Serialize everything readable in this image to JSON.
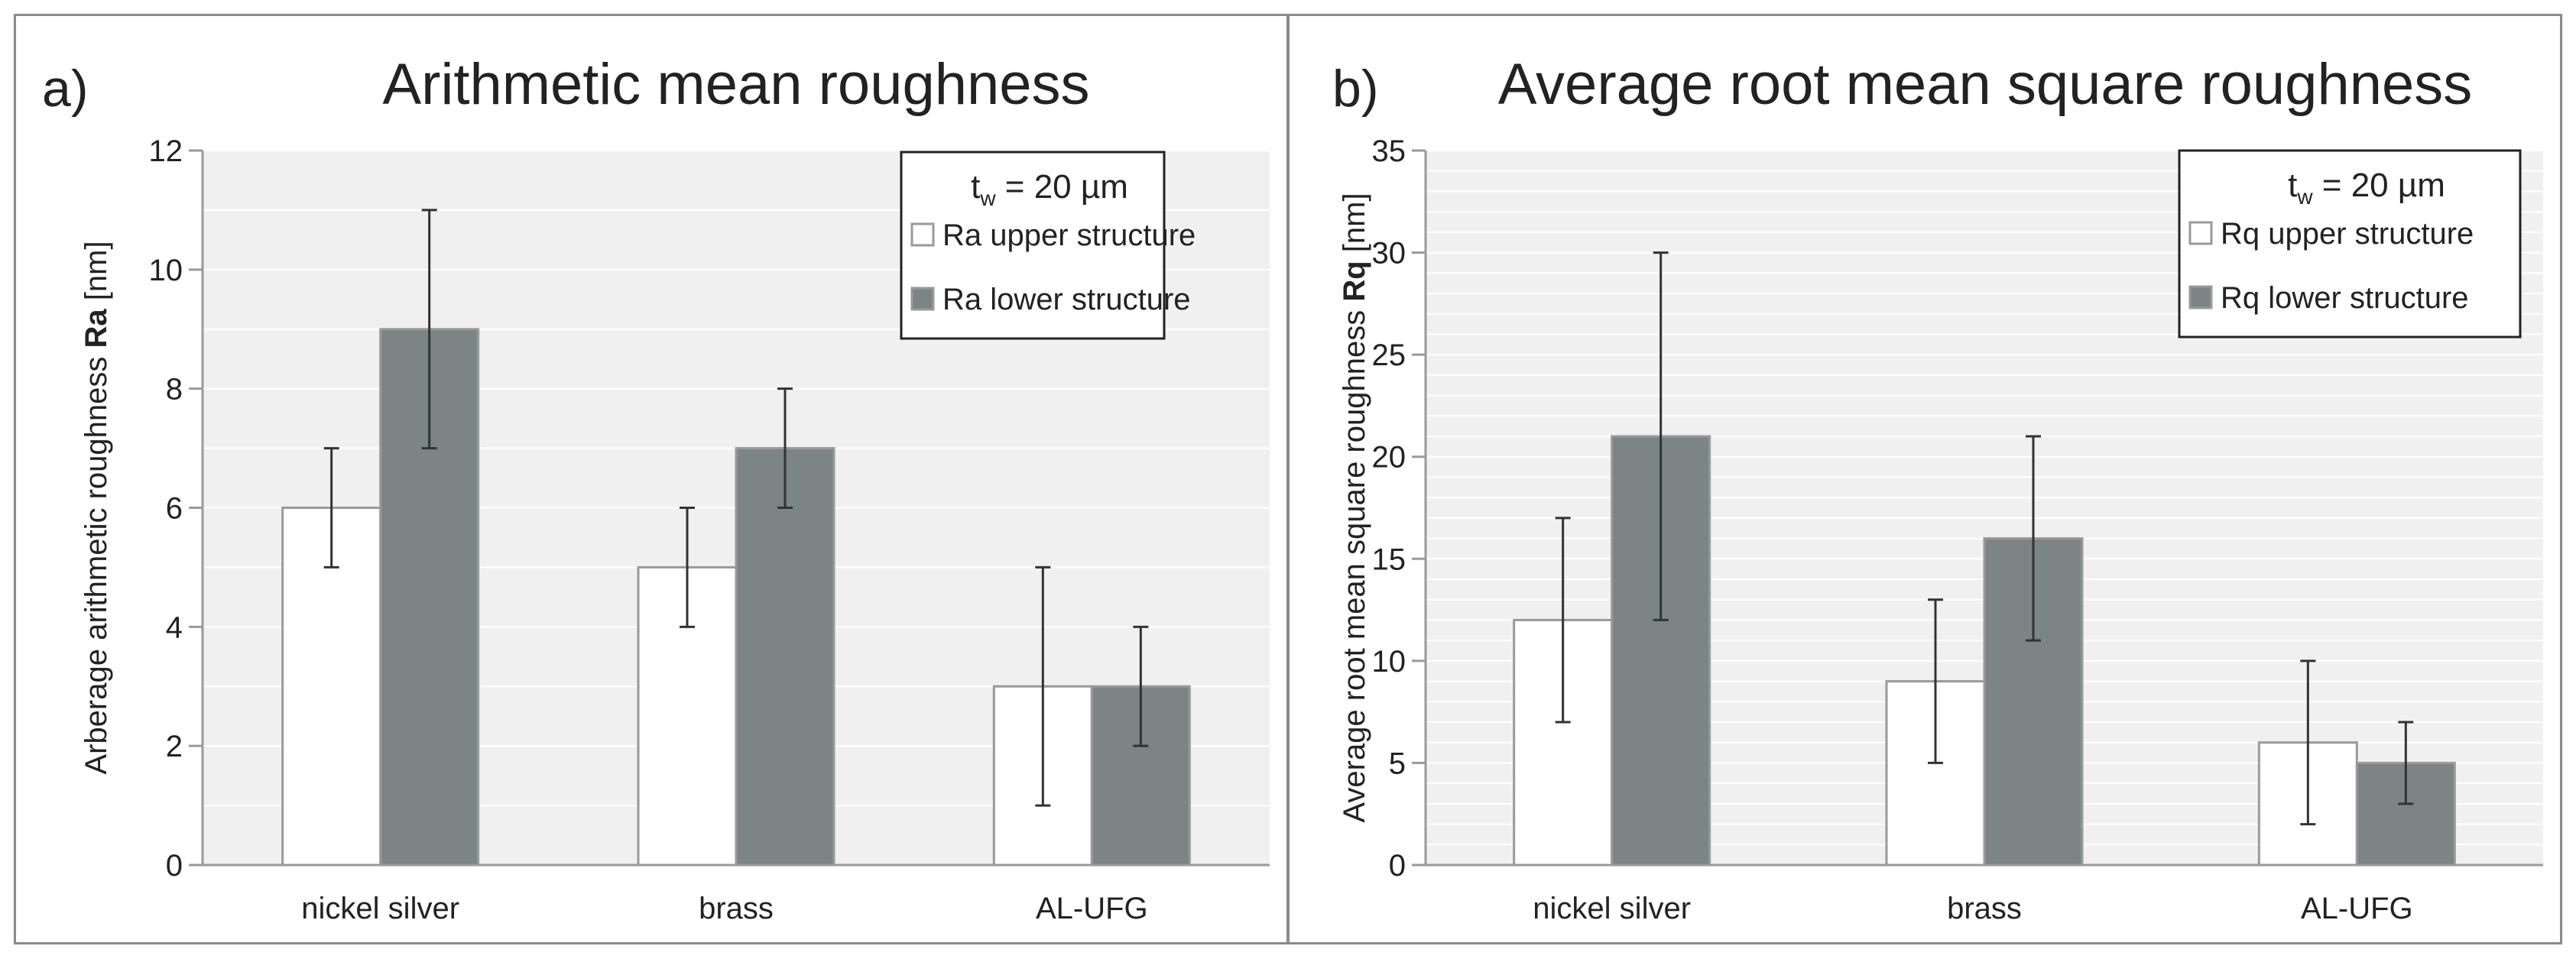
{
  "chart_data": [
    {
      "type": "bar",
      "panel_letter": "a)",
      "title": "Arithmetic mean roughness",
      "ylabel_prefix": "Arberage arithmetic roughness ",
      "ylabel_bold": "Ra",
      "ylabel_suffix": " [nm]",
      "ylim": [
        0,
        12
      ],
      "yticks": [
        0,
        2,
        4,
        6,
        8,
        10,
        12
      ],
      "grid_step": 1,
      "categories": [
        "nickel silver",
        "brass",
        "AL-UFG"
      ],
      "legend_title_main": "t",
      "legend_title_sub": "w",
      "legend_title_rest": " = 20 µm",
      "legend_position": "top-right",
      "series": [
        {
          "name": "Ra upper structure",
          "values": [
            6,
            5,
            3
          ],
          "errors": [
            1,
            1,
            2
          ],
          "color": "#ffffff"
        },
        {
          "name": "Ra lower structure",
          "values": [
            9,
            7,
            3
          ],
          "errors": [
            2,
            1,
            1
          ],
          "color": "#7a8584"
        }
      ]
    },
    {
      "type": "bar",
      "panel_letter": "b)",
      "title": "Average root mean square roughness",
      "ylabel_prefix": "Average root mean square roughness ",
      "ylabel_bold": "Rq",
      "ylabel_suffix": " [nm]",
      "ylim": [
        0,
        35
      ],
      "yticks": [
        0,
        5,
        10,
        15,
        20,
        25,
        30,
        35
      ],
      "grid_step": 1,
      "categories": [
        "nickel silver",
        "brass",
        "AL-UFG"
      ],
      "legend_title_main": "t",
      "legend_title_sub": "w",
      "legend_title_rest": " = 20 µm",
      "legend_position": "top-right",
      "series": [
        {
          "name": "Rq upper structure",
          "values": [
            12,
            9,
            6
          ],
          "errors": [
            5,
            4,
            4
          ],
          "color": "#ffffff"
        },
        {
          "name": "Rq lower structure",
          "values": [
            21,
            16,
            5
          ],
          "errors": [
            9,
            5,
            2
          ],
          "color": "#7a8584"
        }
      ]
    }
  ],
  "colors": {
    "plot_bg": "#f0f0f0",
    "grid": "#ffffff",
    "axis": "#9a9a9a",
    "bar_outline": "#9a9a9a",
    "error": "#333333",
    "text": "#222222"
  }
}
